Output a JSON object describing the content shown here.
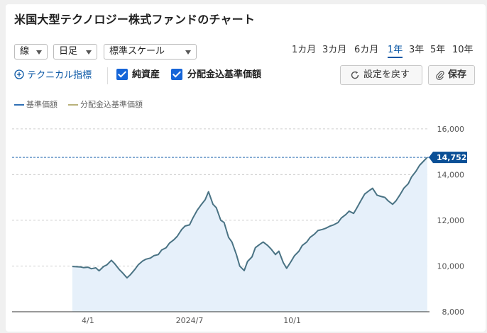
{
  "header": {
    "title": "米国大型テクノロジー株式ファンドのチャート"
  },
  "controls": {
    "chart_type": "線",
    "period_type": "日足",
    "scale": "標準スケール",
    "ranges": [
      "1カ月",
      "3カ月",
      "6カ月",
      "1年",
      "3年",
      "5年",
      "10年"
    ],
    "active_range": "1年",
    "technical_label": "テクニカル指標",
    "checkbox_nav": "純資産",
    "checkbox_dist": "分配金込基準価額",
    "reset_label": "設定を戻す",
    "save_label": "保存"
  },
  "colors": {
    "nav_line": "#4a7384",
    "nav_fill": "#e6f0fa",
    "dist_line": "#b9b27a",
    "accent": "#0a57a5"
  },
  "chart_data": {
    "type": "area",
    "series": [
      {
        "name": "基準価額",
        "points": [
          [
            "2024-03-18",
            9980
          ],
          [
            "2024-03-21",
            9970
          ],
          [
            "2024-03-25",
            9960
          ],
          [
            "2024-03-28",
            9930
          ],
          [
            "2024-04-01",
            9950
          ],
          [
            "2024-04-04",
            9880
          ],
          [
            "2024-04-08",
            9920
          ],
          [
            "2024-04-11",
            9790
          ],
          [
            "2024-04-15",
            9980
          ],
          [
            "2024-04-18",
            10050
          ],
          [
            "2024-04-22",
            10250
          ],
          [
            "2024-04-25",
            10100
          ],
          [
            "2024-04-29",
            9850
          ],
          [
            "2024-05-02",
            9700
          ],
          [
            "2024-05-06",
            9480
          ],
          [
            "2024-05-09",
            9620
          ],
          [
            "2024-05-13",
            9850
          ],
          [
            "2024-05-16",
            10050
          ],
          [
            "2024-05-20",
            10220
          ],
          [
            "2024-05-23",
            10300
          ],
          [
            "2024-05-27",
            10350
          ],
          [
            "2024-05-30",
            10450
          ],
          [
            "2024-06-03",
            10500
          ],
          [
            "2024-06-06",
            10700
          ],
          [
            "2024-06-10",
            10800
          ],
          [
            "2024-06-13",
            11000
          ],
          [
            "2024-06-17",
            11150
          ],
          [
            "2024-06-20",
            11300
          ],
          [
            "2024-06-24",
            11600
          ],
          [
            "2024-06-27",
            11750
          ],
          [
            "2024-07-01",
            11800
          ],
          [
            "2024-07-04",
            12100
          ],
          [
            "2024-07-08",
            12450
          ],
          [
            "2024-07-11",
            12650
          ],
          [
            "2024-07-15",
            12900
          ],
          [
            "2024-07-18",
            13250
          ],
          [
            "2024-07-22",
            12700
          ],
          [
            "2024-07-25",
            12550
          ],
          [
            "2024-07-29",
            12000
          ],
          [
            "2024-08-01",
            11900
          ],
          [
            "2024-08-05",
            11250
          ],
          [
            "2024-08-08",
            11050
          ],
          [
            "2024-08-12",
            10500
          ],
          [
            "2024-08-15",
            10000
          ],
          [
            "2024-08-19",
            9800
          ],
          [
            "2024-08-22",
            10200
          ],
          [
            "2024-08-26",
            10400
          ],
          [
            "2024-08-29",
            10800
          ],
          [
            "2024-09-02",
            10950
          ],
          [
            "2024-09-05",
            11050
          ],
          [
            "2024-09-09",
            10900
          ],
          [
            "2024-09-12",
            10750
          ],
          [
            "2024-09-16",
            10500
          ],
          [
            "2024-09-19",
            10650
          ],
          [
            "2024-09-23",
            10150
          ],
          [
            "2024-09-26",
            9900
          ],
          [
            "2024-09-30",
            10200
          ],
          [
            "2024-10-03",
            10450
          ],
          [
            "2024-10-07",
            10650
          ],
          [
            "2024-10-10",
            10900
          ],
          [
            "2024-10-14",
            11050
          ],
          [
            "2024-10-17",
            11250
          ],
          [
            "2024-10-21",
            11400
          ],
          [
            "2024-10-24",
            11550
          ],
          [
            "2024-10-28",
            11600
          ],
          [
            "2024-10-31",
            11650
          ],
          [
            "2024-11-04",
            11750
          ],
          [
            "2024-11-07",
            11800
          ],
          [
            "2024-11-11",
            11900
          ],
          [
            "2024-11-14",
            12100
          ],
          [
            "2024-11-18",
            12250
          ],
          [
            "2024-11-21",
            12400
          ],
          [
            "2024-11-25",
            12300
          ],
          [
            "2024-11-28",
            12550
          ],
          [
            "2024-12-02",
            12900
          ],
          [
            "2024-12-05",
            13150
          ],
          [
            "2024-12-09",
            13300
          ],
          [
            "2024-12-12",
            13400
          ],
          [
            "2024-12-16",
            13100
          ],
          [
            "2024-12-19",
            13050
          ],
          [
            "2024-12-23",
            13000
          ],
          [
            "2024-12-26",
            12850
          ],
          [
            "2024-12-30",
            12700
          ],
          [
            "2025-01-02",
            12850
          ],
          [
            "2025-01-06",
            13150
          ],
          [
            "2025-01-09",
            13400
          ],
          [
            "2025-01-13",
            13600
          ],
          [
            "2025-01-16",
            13900
          ],
          [
            "2025-01-20",
            14150
          ],
          [
            "2025-01-23",
            14400
          ],
          [
            "2025-01-27",
            14600
          ],
          [
            "2025-01-30",
            14752
          ]
        ]
      },
      {
        "name": "分配金込基準価額",
        "points": []
      }
    ],
    "x_ticks": [
      {
        "date": "2024-04-01",
        "label": "4/1"
      },
      {
        "date": "2024-07-01",
        "label": "2024/7"
      },
      {
        "date": "2024-10-01",
        "label": "10/1"
      }
    ],
    "y_ticks": [
      {
        "value": 8000,
        "label": "8,000"
      },
      {
        "value": 10000,
        "label": "10,000"
      },
      {
        "value": 12000,
        "label": "12,000"
      },
      {
        "value": 14000,
        "label": "14,000"
      },
      {
        "value": 16000,
        "label": "16,000"
      }
    ],
    "ylim": [
      8000,
      16800
    ],
    "xlim": [
      "2024-01-24",
      "2025-02-01"
    ],
    "last_value_label": "14,752",
    "last_value": 14752,
    "grid": "horizontal-dashed",
    "legend_position": "top-left"
  }
}
